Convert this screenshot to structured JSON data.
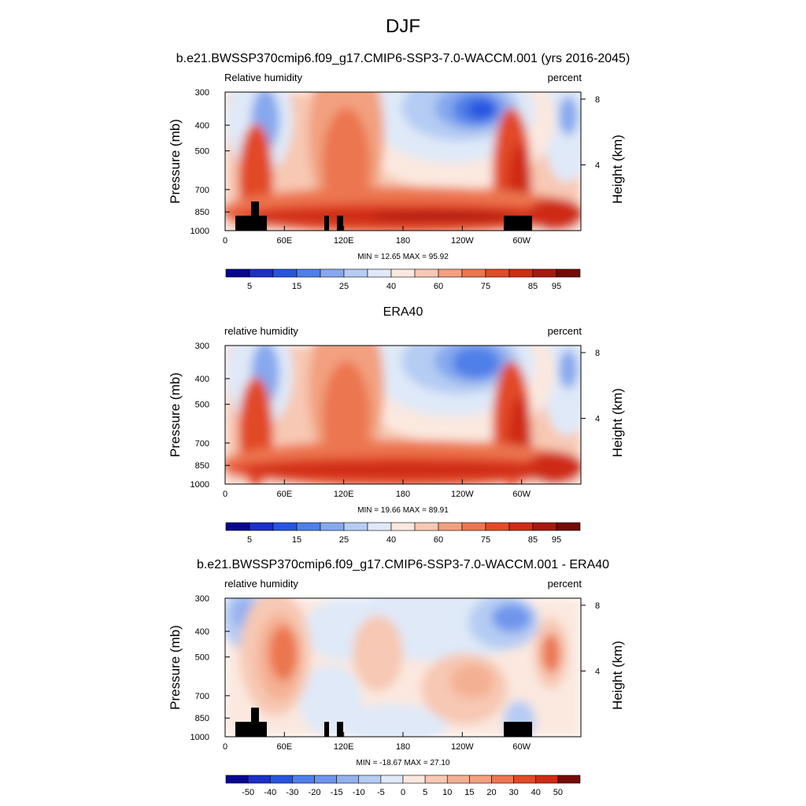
{
  "main_title": "DJF",
  "x_ticks": [
    "0",
    "60E",
    "120E",
    "180",
    "120W",
    "60W"
  ],
  "x_tick_lon": [
    0,
    60,
    120,
    180,
    240,
    300
  ],
  "lon_range": [
    0,
    360
  ],
  "y_ticks": [
    "300",
    "400",
    "500",
    "700",
    "850",
    "1000"
  ],
  "y_tick_p": [
    300,
    400,
    500,
    700,
    850,
    1000
  ],
  "p_range": [
    300,
    1000
  ],
  "y_scale": "log",
  "height_ticks": [
    "8",
    "4"
  ],
  "height_tick_km": [
    8,
    4
  ],
  "ylabel": "Pressure (mb)",
  "ylabel_right": "Height (km)",
  "chart_data": [
    {
      "type": "heatmap",
      "title": "b.e21.BWSSP370cmip6.f09_g17.CMIP6-SSP3-7.0-WACCM.001 (yrs 2016-2045)",
      "field_label": "Relative humidity",
      "units": "percent",
      "min_max_text": "MIN =  12.65  MAX =  95.92",
      "min": 12.65,
      "max": 95.92,
      "colorbar": {
        "labels": [
          "5",
          "15",
          "25",
          "40",
          "60",
          "75",
          "85",
          "95"
        ],
        "colors": [
          "#08088f",
          "#1c2fc7",
          "#2855e0",
          "#4f7fe8",
          "#86a8ee",
          "#b5ccf3",
          "#dfe9f8",
          "#fbe8df",
          "#f7c8b3",
          "#f2a07f",
          "#ec7650",
          "#e24a28",
          "#cf2c15",
          "#a81910",
          "#740b06"
        ]
      },
      "terrain": true
    },
    {
      "type": "heatmap",
      "title": "ERA40",
      "field_label": "relative humidity",
      "units": "percent",
      "min_max_text": "MIN =  19.66  MAX =  89.91",
      "min": 19.66,
      "max": 89.91,
      "colorbar": {
        "labels": [
          "5",
          "15",
          "25",
          "40",
          "60",
          "75",
          "85",
          "95"
        ],
        "colors": [
          "#08088f",
          "#1c2fc7",
          "#2855e0",
          "#4f7fe8",
          "#86a8ee",
          "#b5ccf3",
          "#dfe9f8",
          "#fbe8df",
          "#f7c8b3",
          "#f2a07f",
          "#ec7650",
          "#e24a28",
          "#cf2c15",
          "#a81910",
          "#740b06"
        ]
      },
      "terrain": false
    },
    {
      "type": "heatmap",
      "title": "b.e21.BWSSP370cmip6.f09_g17.CMIP6-SSP3-7.0-WACCM.001 - ERA40",
      "field_label": "relative humidity",
      "units": "percent",
      "min_max_text": "MIN = -18.67  MAX =  27.10",
      "min": -18.67,
      "max": 27.1,
      "colorbar": {
        "labels": [
          "-50",
          "-40",
          "-30",
          "-20",
          "-15",
          "-10",
          "-5",
          "0",
          "5",
          "10",
          "15",
          "20",
          "30",
          "40",
          "50"
        ],
        "colors": [
          "#08088f",
          "#1c2fc7",
          "#2855e0",
          "#4f7fe8",
          "#6f96ec",
          "#92b1ef",
          "#b5ccf3",
          "#dfe9f8",
          "#fbe8df",
          "#f7c8b3",
          "#f4b093",
          "#f2a07f",
          "#ec7650",
          "#e24a28",
          "#cf2c15",
          "#740b06"
        ]
      },
      "terrain": true
    }
  ]
}
